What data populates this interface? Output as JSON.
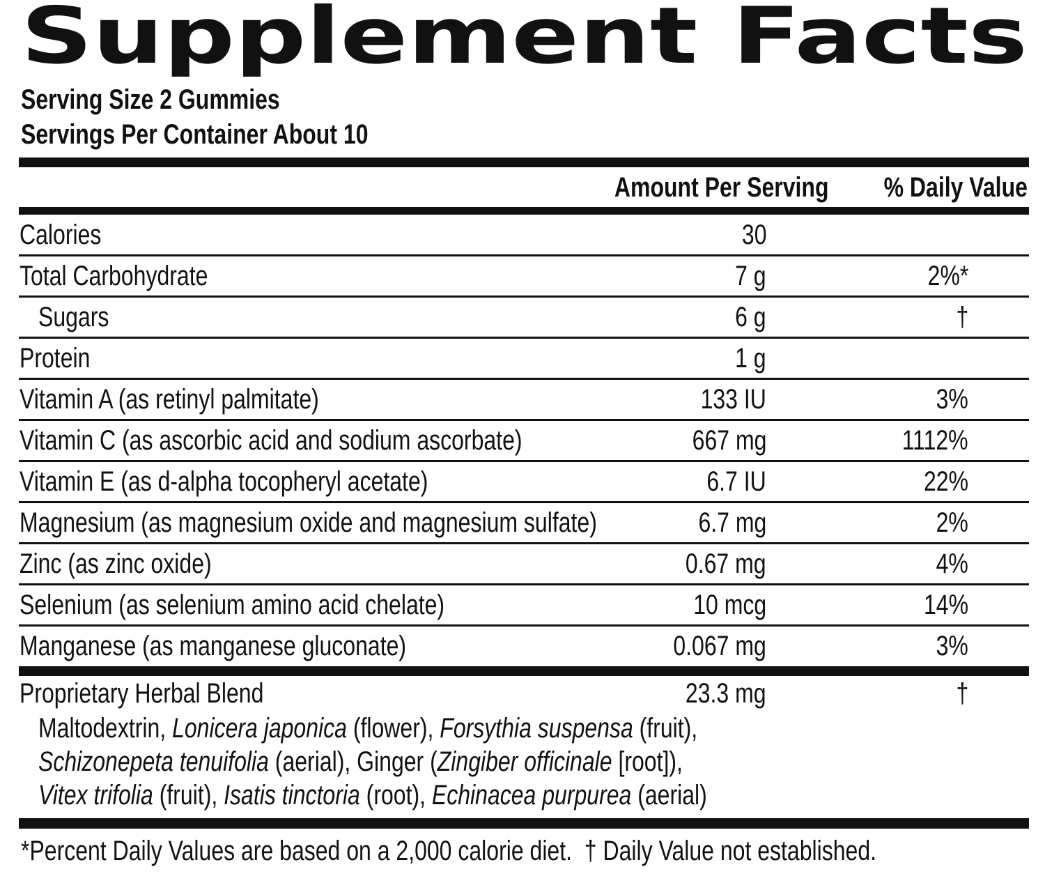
{
  "title": "Supplement Facts",
  "serving_size": "Serving Size 2 Gummies",
  "servings_per_container": "Servings Per Container About 10",
  "header": {
    "amount": "Amount Per Serving",
    "dv": "% Daily Value"
  },
  "rows": [
    {
      "name": "Calories",
      "amount": "30"
    },
    {
      "name": "Total Carbohydrate",
      "amount": "7 g",
      "dv": "2%*"
    },
    {
      "name": "Sugars",
      "amount": "6 g",
      "dv": "†",
      "indent": true
    },
    {
      "name": "Protein",
      "amount": "1 g"
    },
    {
      "name": "Vitamin A (as retinyl palmitate)",
      "amount": "133 IU",
      "dv": "3%"
    },
    {
      "name": "Vitamin C (as ascorbic acid and sodium ascorbate)",
      "amount": "667 mg",
      "dv": "1112%"
    },
    {
      "name": "Vitamin E (as d-alpha tocopheryl acetate)",
      "amount": "6.7 IU",
      "dv": "22%"
    },
    {
      "name": "Magnesium (as magnesium oxide and magnesium sulfate)",
      "amount": "6.7 mg",
      "dv": "2%"
    },
    {
      "name": "Zinc (as zinc oxide)",
      "amount": "0.67 mg",
      "dv": "4%"
    },
    {
      "name": "Selenium (as selenium amino acid chelate)",
      "amount": "10 mcg",
      "dv": "14%"
    },
    {
      "name": "Manganese (as manganese gluconate)",
      "amount": "0.067 mg",
      "dv": "3%"
    }
  ],
  "blend": {
    "name": "Proprietary Herbal Blend",
    "amount": "23.3 mg",
    "dv": "†",
    "ingredients": [
      [
        {
          "text": "Maltodextrin, "
        },
        {
          "text": "Lonicera japonica",
          "italic": true
        },
        {
          "text": " (flower), "
        },
        {
          "text": "Forsythia suspensa",
          "italic": true
        },
        {
          "text": " (fruit),"
        }
      ],
      [
        {
          "text": "Schizonepeta tenuifolia",
          "italic": true
        },
        {
          "text": " (aerial), Ginger ("
        },
        {
          "text": "Zingiber officinale",
          "italic": true
        },
        {
          "text": " [root]),"
        }
      ],
      [
        {
          "text": "Vitex trifolia",
          "italic": true
        },
        {
          "text": " (fruit), "
        },
        {
          "text": "Isatis tinctoria",
          "italic": true
        },
        {
          "text": " (root), "
        },
        {
          "text": "Echinacea purpurea",
          "italic": true
        },
        {
          "text": " (aerial)"
        }
      ]
    ]
  },
  "footnote": "*Percent Daily Values are based on a 2,000 calorie diet.  † Daily Value not established."
}
